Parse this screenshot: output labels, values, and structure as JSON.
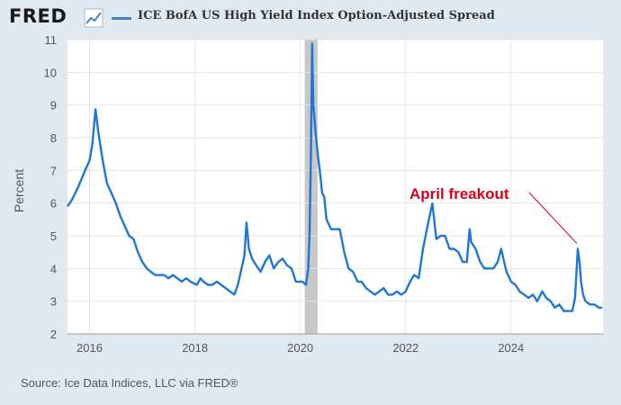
{
  "header": {
    "brand": "FRED",
    "brand_icon": "fred-chart-icon",
    "title": "ICE BofA US High Yield Index Option-Adjusted Spread"
  },
  "footer": {
    "source": "Source: Ice Data Indices, LLC via FRED®"
  },
  "colors": {
    "series": "#1f77d4",
    "annotation": "#d9001b",
    "recession": "#c8c8c8",
    "background": "#e1e9f0"
  },
  "chart_data": {
    "type": "line",
    "title": "ICE BofA US High Yield Index Option-Adjusted Spread",
    "xlabel": "",
    "ylabel": "Percent",
    "xlim": [
      "2015-08-01",
      "2025-09-30"
    ],
    "ylim": [
      2,
      11
    ],
    "yticks": [
      2,
      3,
      4,
      5,
      6,
      7,
      8,
      9,
      10,
      11
    ],
    "xticks": [
      {
        "date": "2016-01-01",
        "label": "2016"
      },
      {
        "date": "2018-01-01",
        "label": "2018"
      },
      {
        "date": "2020-01-01",
        "label": "2020"
      },
      {
        "date": "2022-01-01",
        "label": "2022"
      },
      {
        "date": "2024-01-01",
        "label": "2024"
      }
    ],
    "grid": true,
    "recession": {
      "start": "2020-02-01",
      "end": "2020-04-30"
    },
    "annotation": {
      "text": "April freakout",
      "date": "2025-04-08",
      "value": 4.6
    },
    "series": [
      {
        "x": [
          "2015-08-01",
          "2015-09-01",
          "2015-10-15",
          "2015-12-01",
          "2016-01-01",
          "2016-01-20",
          "2016-02-11",
          "2016-03-01",
          "2016-04-01",
          "2016-05-01",
          "2016-06-01",
          "2016-07-01",
          "2016-08-01",
          "2016-09-01",
          "2016-10-01",
          "2016-11-01",
          "2016-12-01",
          "2017-01-01",
          "2017-02-01",
          "2017-03-01",
          "2017-04-01",
          "2017-05-01",
          "2017-06-01",
          "2017-07-01",
          "2017-08-01",
          "2017-09-01",
          "2017-10-01",
          "2017-11-01",
          "2017-12-01",
          "2018-01-15",
          "2018-02-08",
          "2018-03-01",
          "2018-04-01",
          "2018-05-01",
          "2018-06-01",
          "2018-07-01",
          "2018-08-01",
          "2018-09-01",
          "2018-10-01",
          "2018-10-25",
          "2018-11-15",
          "2018-12-10",
          "2018-12-24",
          "2019-01-10",
          "2019-02-01",
          "2019-03-01",
          "2019-04-01",
          "2019-05-01",
          "2019-06-01",
          "2019-07-01",
          "2019-08-01",
          "2019-09-01",
          "2019-10-01",
          "2019-11-01",
          "2019-12-01",
          "2020-01-15",
          "2020-02-10",
          "2020-02-25",
          "2020-03-05",
          "2020-03-15",
          "2020-03-23",
          "2020-04-01",
          "2020-04-15",
          "2020-05-01",
          "2020-05-15",
          "2020-06-01",
          "2020-06-15",
          "2020-07-01",
          "2020-08-01",
          "2020-09-01",
          "2020-10-01",
          "2020-11-01",
          "2020-12-01",
          "2021-01-01",
          "2021-02-01",
          "2021-03-01",
          "2021-04-01",
          "2021-05-01",
          "2021-06-01",
          "2021-07-01",
          "2021-08-01",
          "2021-09-01",
          "2021-10-01",
          "2021-11-01",
          "2021-12-01",
          "2022-01-01",
          "2022-02-01",
          "2022-03-01",
          "2022-04-01",
          "2022-05-01",
          "2022-06-01",
          "2022-07-05",
          "2022-08-01",
          "2022-09-01",
          "2022-10-01",
          "2022-11-01",
          "2022-12-01",
          "2023-01-01",
          "2023-02-01",
          "2023-03-01",
          "2023-03-20",
          "2023-04-01",
          "2023-05-01",
          "2023-06-01",
          "2023-07-01",
          "2023-08-01",
          "2023-09-01",
          "2023-10-01",
          "2023-10-25",
          "2023-11-15",
          "2023-12-01",
          "2024-01-01",
          "2024-02-01",
          "2024-03-01",
          "2024-04-01",
          "2024-05-01",
          "2024-06-01",
          "2024-07-01",
          "2024-08-05",
          "2024-09-01",
          "2024-10-01",
          "2024-11-01",
          "2024-12-01",
          "2025-01-01",
          "2025-02-01",
          "2025-03-01",
          "2025-03-20",
          "2025-04-08",
          "2025-04-20",
          "2025-05-01",
          "2025-05-15",
          "2025-06-01",
          "2025-07-01",
          "2025-08-01",
          "2025-09-01",
          "2025-09-25"
        ],
        "values": [
          5.9,
          6.1,
          6.5,
          7.0,
          7.3,
          7.8,
          8.87,
          8.2,
          7.3,
          6.6,
          6.3,
          6.0,
          5.6,
          5.3,
          5.0,
          4.9,
          4.5,
          4.2,
          4.0,
          3.9,
          3.8,
          3.8,
          3.8,
          3.7,
          3.8,
          3.7,
          3.6,
          3.7,
          3.6,
          3.5,
          3.7,
          3.6,
          3.5,
          3.5,
          3.6,
          3.5,
          3.4,
          3.3,
          3.2,
          3.5,
          3.9,
          4.4,
          5.4,
          4.6,
          4.3,
          4.1,
          3.9,
          4.2,
          4.4,
          4.0,
          4.2,
          4.3,
          4.1,
          4.0,
          3.6,
          3.6,
          3.5,
          4.0,
          5.0,
          7.5,
          10.87,
          9.0,
          8.2,
          7.5,
          7.0,
          6.3,
          6.2,
          5.5,
          5.2,
          5.2,
          5.2,
          4.5,
          4.0,
          3.9,
          3.6,
          3.6,
          3.4,
          3.3,
          3.2,
          3.3,
          3.4,
          3.2,
          3.2,
          3.3,
          3.2,
          3.3,
          3.6,
          3.8,
          3.7,
          4.6,
          5.3,
          5.99,
          4.9,
          5.0,
          5.0,
          4.6,
          4.6,
          4.5,
          4.2,
          4.2,
          5.2,
          4.8,
          4.6,
          4.2,
          4.0,
          4.0,
          4.0,
          4.2,
          4.6,
          4.2,
          3.9,
          3.6,
          3.5,
          3.3,
          3.2,
          3.1,
          3.2,
          3.0,
          3.3,
          3.1,
          3.0,
          2.8,
          2.9,
          2.7,
          2.7,
          2.7,
          3.1,
          4.6,
          4.2,
          3.6,
          3.2,
          3.0,
          2.9,
          2.9,
          2.8,
          2.8
        ]
      }
    ]
  }
}
